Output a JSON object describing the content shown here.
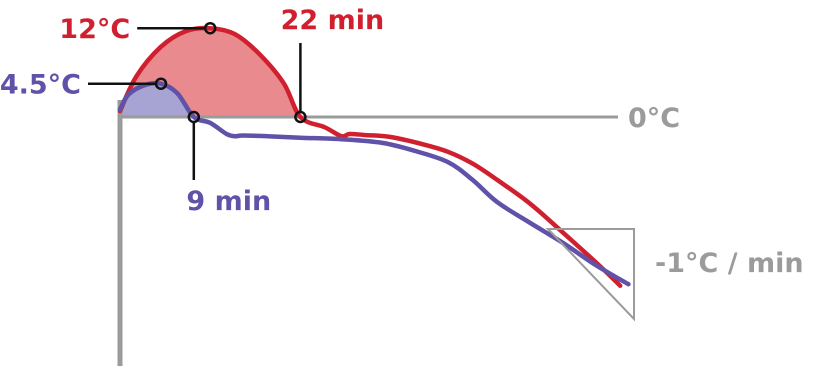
{
  "chart_data": {
    "type": "line",
    "title": "",
    "xlabel": "",
    "ylabel": "",
    "grid": false,
    "series": [
      {
        "color": "#d0202f",
        "fill": "#e98a8e",
        "x": [
          0,
          2,
          5,
          8,
          11,
          14,
          17,
          20,
          22,
          25,
          27,
          28,
          30,
          33,
          37,
          40,
          43,
          46,
          50,
          54,
          58,
          61
        ],
        "y": [
          0.8,
          5.5,
          9.5,
          11.6,
          12.0,
          11.2,
          8.5,
          4.5,
          0.0,
          -1.4,
          -2.6,
          -2.3,
          -2.45,
          -2.7,
          -3.7,
          -4.7,
          -6.3,
          -8.5,
          -11.7,
          -15.6,
          -19.6,
          -22.8
        ]
      },
      {
        "color": "#5f52a8",
        "fill": "#a7a3d3",
        "x": [
          0,
          1,
          3,
          5,
          7,
          9,
          11,
          13,
          14,
          15,
          18,
          22,
          27,
          32,
          36,
          40,
          43,
          46,
          50,
          54,
          58,
          62
        ],
        "y": [
          1.0,
          3.0,
          4.3,
          4.5,
          3.2,
          0.0,
          -0.8,
          -2.3,
          -2.6,
          -2.5,
          -2.6,
          -2.8,
          -3.0,
          -3.5,
          -4.6,
          -6.1,
          -8.5,
          -11.5,
          -14.3,
          -17.0,
          -20.0,
          -22.6
        ]
      }
    ],
    "reference_line": {
      "y": 0,
      "label": "0°C",
      "color": "#9b9b9b"
    },
    "slope_marker": {
      "label": "-1°C / min",
      "color": "#9b9b9b"
    },
    "annotations": [
      {
        "series": 0,
        "x": 11,
        "y": 12.0,
        "label": "12°C",
        "side": "left"
      },
      {
        "series": 0,
        "x": 22,
        "y": 0.0,
        "label": "22 min",
        "side": "up"
      },
      {
        "series": 1,
        "x": 5,
        "y": 4.5,
        "label": "4.5°C",
        "side": "left"
      },
      {
        "series": 1,
        "x": 9,
        "y": 0.0,
        "label": "9 min",
        "side": "down"
      }
    ]
  }
}
